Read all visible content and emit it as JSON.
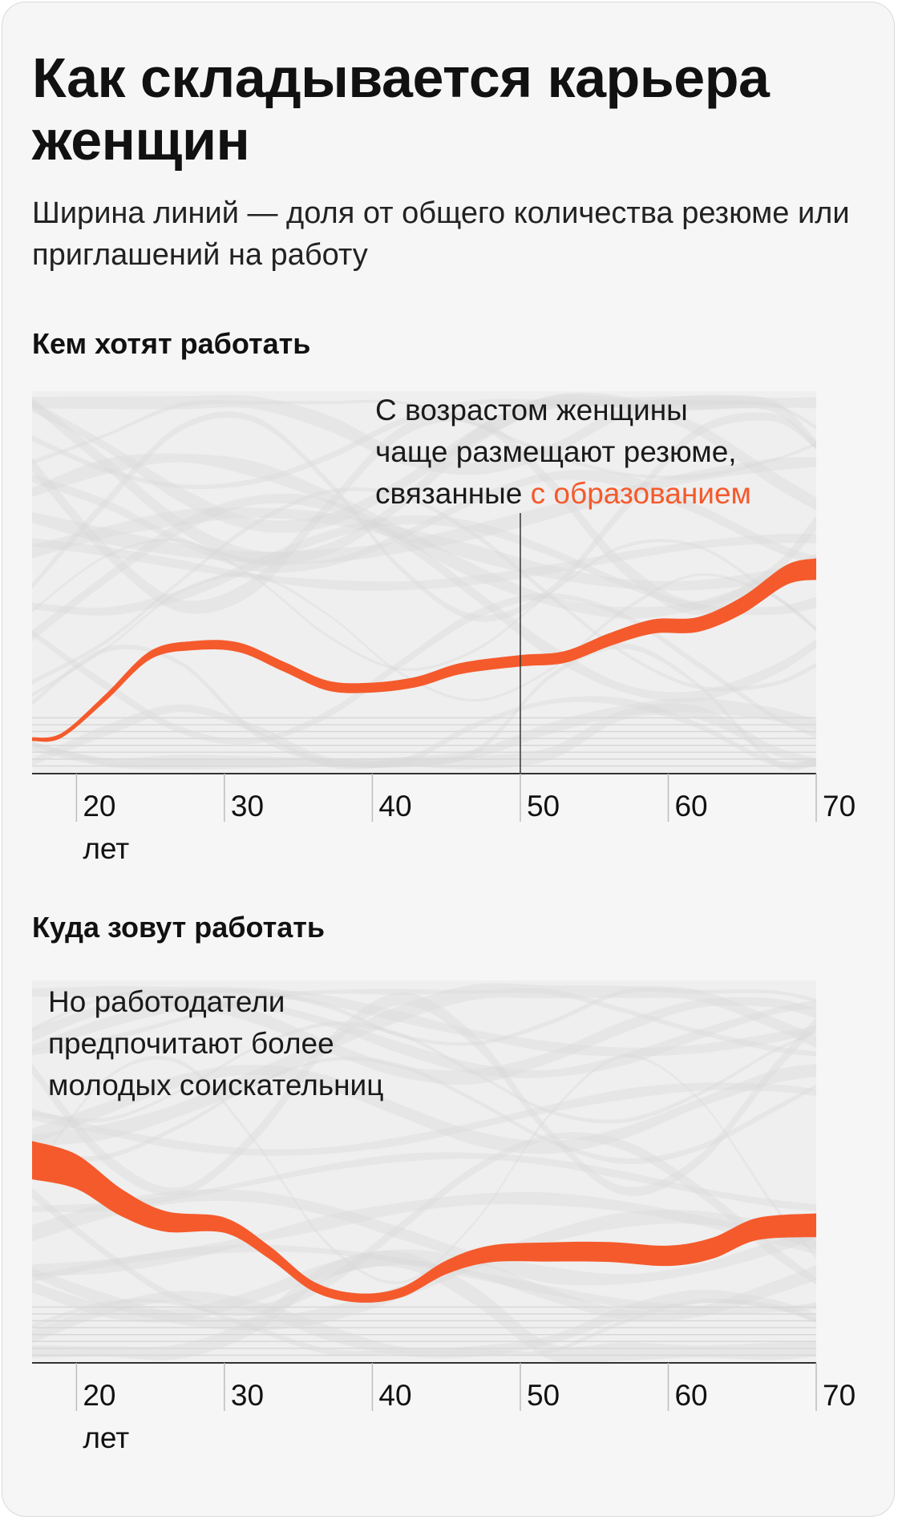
{
  "title": "Как складывается карьера женщин",
  "subtitle": "Ширина линий — доля от общего количества резюме или приглашений на работу",
  "colors": {
    "highlight": "#f55a2c",
    "background_streams": "#d6d6d6",
    "axis": "#333333"
  },
  "chart_data": [
    {
      "type": "area",
      "section_title": "Кем хотят работать",
      "annotation": {
        "line1": "С возрастом женщины",
        "line2": "чаще размещают резюме,",
        "line3_prefix": "связанные",
        "line3_highlight": "с образованием"
      },
      "marker_x": 50,
      "x_ticks": [
        20,
        30,
        40,
        50,
        60,
        70
      ],
      "first_tick_unit": "лет",
      "xlim": [
        17,
        70
      ],
      "highlight_series": {
        "name": "с образованием",
        "x": [
          17,
          19,
          22,
          25,
          28,
          31,
          34,
          37,
          40,
          43,
          46,
          50,
          53,
          56,
          59,
          62,
          65,
          68,
          70
        ],
        "center": [
          0.09,
          0.1,
          0.2,
          0.31,
          0.335,
          0.33,
          0.28,
          0.23,
          0.225,
          0.24,
          0.275,
          0.295,
          0.305,
          0.35,
          0.385,
          0.39,
          0.44,
          0.52,
          0.535
        ],
        "width": [
          0.01,
          0.012,
          0.018,
          0.022,
          0.024,
          0.025,
          0.026,
          0.026,
          0.026,
          0.027,
          0.029,
          0.03,
          0.031,
          0.034,
          0.037,
          0.039,
          0.045,
          0.052,
          0.056
        ]
      }
    },
    {
      "type": "area",
      "section_title": "Куда зовут работать",
      "annotation": {
        "line1": "Но работодатели",
        "line2": "предпочитают более",
        "line3": "молодых соискательниц"
      },
      "x_ticks": [
        20,
        30,
        40,
        50,
        60,
        70
      ],
      "first_tick_unit": "лет",
      "xlim": [
        17,
        70
      ],
      "highlight_series": {
        "name": "с образованием",
        "x": [
          17,
          20,
          23,
          26,
          30,
          33,
          36,
          39,
          42,
          45,
          48,
          52,
          56,
          60,
          63,
          66,
          70
        ],
        "center": [
          0.53,
          0.5,
          0.42,
          0.37,
          0.36,
          0.29,
          0.2,
          0.17,
          0.185,
          0.25,
          0.285,
          0.29,
          0.29,
          0.28,
          0.3,
          0.35,
          0.36
        ],
        "width": [
          0.1,
          0.09,
          0.072,
          0.054,
          0.04,
          0.034,
          0.026,
          0.024,
          0.026,
          0.036,
          0.044,
          0.05,
          0.052,
          0.053,
          0.055,
          0.058,
          0.062
        ]
      }
    }
  ]
}
